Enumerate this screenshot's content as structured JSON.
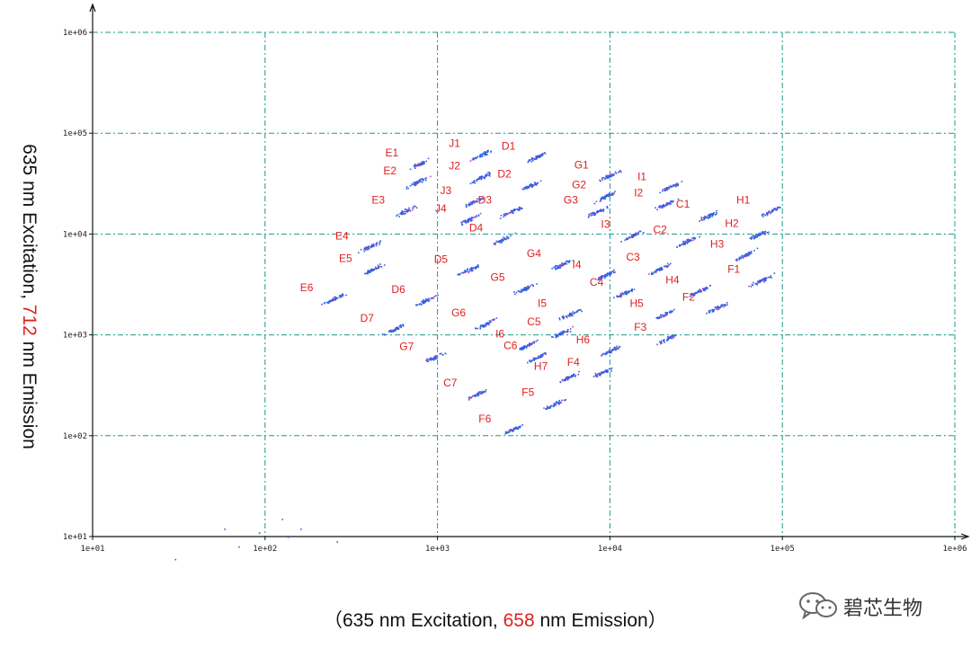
{
  "chart_data": {
    "type": "scatter",
    "x_scale": "log",
    "y_scale": "log",
    "xlim": [
      10,
      1000000
    ],
    "ylim": [
      10,
      1000000
    ],
    "x_ticks": [
      "1e+01",
      "1e+02",
      "1e+03",
      "1e+04",
      "1e+05",
      "1e+06"
    ],
    "y_ticks": [
      "1e+01",
      "1e+02",
      "1e+03",
      "1e+04",
      "1e+05",
      "1e+06"
    ],
    "grid": true,
    "ylabel": {
      "part1": "635 nm Excitation, ",
      "highlight": "712",
      "part2": " nm Emission"
    },
    "xlabel": {
      "part1": "（635 nm Excitation, ",
      "highlight": "658",
      "part2": " nm Emission）"
    },
    "clusters": [
      {
        "label": "E1",
        "x": 780,
        "y": 50000
      },
      {
        "label": "E2",
        "x": 760,
        "y": 33000
      },
      {
        "label": "E3",
        "x": 650,
        "y": 17000
      },
      {
        "label": "E4",
        "x": 400,
        "y": 7500
      },
      {
        "label": "E5",
        "x": 420,
        "y": 4500
      },
      {
        "label": "E6",
        "x": 250,
        "y": 2300
      },
      {
        "label": "J1",
        "x": 1800,
        "y": 62000
      },
      {
        "label": "J2",
        "x": 1800,
        "y": 37000
      },
      {
        "label": "J3",
        "x": 1600,
        "y": 21000
      },
      {
        "label": "J4",
        "x": 1500,
        "y": 14000
      },
      {
        "label": "D1",
        "x": 3700,
        "y": 58000
      },
      {
        "label": "D2",
        "x": 3500,
        "y": 31000
      },
      {
        "label": "D3",
        "x": 2700,
        "y": 17000
      },
      {
        "label": "D4",
        "x": 2400,
        "y": 9000
      },
      {
        "label": "D5",
        "x": 1500,
        "y": 4400
      },
      {
        "label": "D6",
        "x": 850,
        "y": 2200
      },
      {
        "label": "D7",
        "x": 560,
        "y": 1150
      },
      {
        "label": "G1",
        "x": 9800,
        "y": 38000
      },
      {
        "label": "G2",
        "x": 9500,
        "y": 24000
      },
      {
        "label": "G3",
        "x": 8500,
        "y": 17000
      },
      {
        "label": "G4",
        "x": 5200,
        "y": 5000
      },
      {
        "label": "G5",
        "x": 3200,
        "y": 2900
      },
      {
        "label": "G6",
        "x": 1900,
        "y": 1300
      },
      {
        "label": "G7",
        "x": 950,
        "y": 600
      },
      {
        "label": "I1",
        "x": 22000,
        "y": 29000
      },
      {
        "label": "I2",
        "x": 21000,
        "y": 20000
      },
      {
        "label": "I3",
        "x": 13500,
        "y": 9800
      },
      {
        "label": "I4",
        "x": 9200,
        "y": 3900
      },
      {
        "label": "I5",
        "x": 5800,
        "y": 1600
      },
      {
        "label": "I6",
        "x": 3300,
        "y": 800
      },
      {
        "label": "C1",
        "x": 38000,
        "y": 15500
      },
      {
        "label": "C2",
        "x": 28000,
        "y": 8600
      },
      {
        "label": "C3",
        "x": 19500,
        "y": 4600
      },
      {
        "label": "C4",
        "x": 12000,
        "y": 2600
      },
      {
        "label": "C5",
        "x": 5200,
        "y": 1050
      },
      {
        "label": "C6",
        "x": 3800,
        "y": 610
      },
      {
        "label": "C7",
        "x": 1700,
        "y": 260
      },
      {
        "label": "H1",
        "x": 85000,
        "y": 17000
      },
      {
        "label": "H2",
        "x": 73000,
        "y": 10000
      },
      {
        "label": "H3",
        "x": 60000,
        "y": 6200
      },
      {
        "label": "H4",
        "x": 33000,
        "y": 2750
      },
      {
        "label": "H5",
        "x": 20500,
        "y": 1600
      },
      {
        "label": "H6",
        "x": 10000,
        "y": 700
      },
      {
        "label": "H7",
        "x": 5700,
        "y": 380
      },
      {
        "label": "F1",
        "x": 75000,
        "y": 3500
      },
      {
        "label": "F2",
        "x": 41000,
        "y": 1850
      },
      {
        "label": "F3",
        "x": 21500,
        "y": 930
      },
      {
        "label": "F4",
        "x": 8800,
        "y": 420
      },
      {
        "label": "F5",
        "x": 4800,
        "y": 210
      },
      {
        "label": "F6",
        "x": 2700,
        "y": 115
      }
    ],
    "colors": {
      "points": "#3060e0",
      "labels": "#e02020",
      "grid": "#1a9a8a",
      "axis": "#111111",
      "tick": "#222222"
    }
  },
  "watermark": {
    "text": "碧芯生物",
    "icon": "wechat-icon"
  }
}
